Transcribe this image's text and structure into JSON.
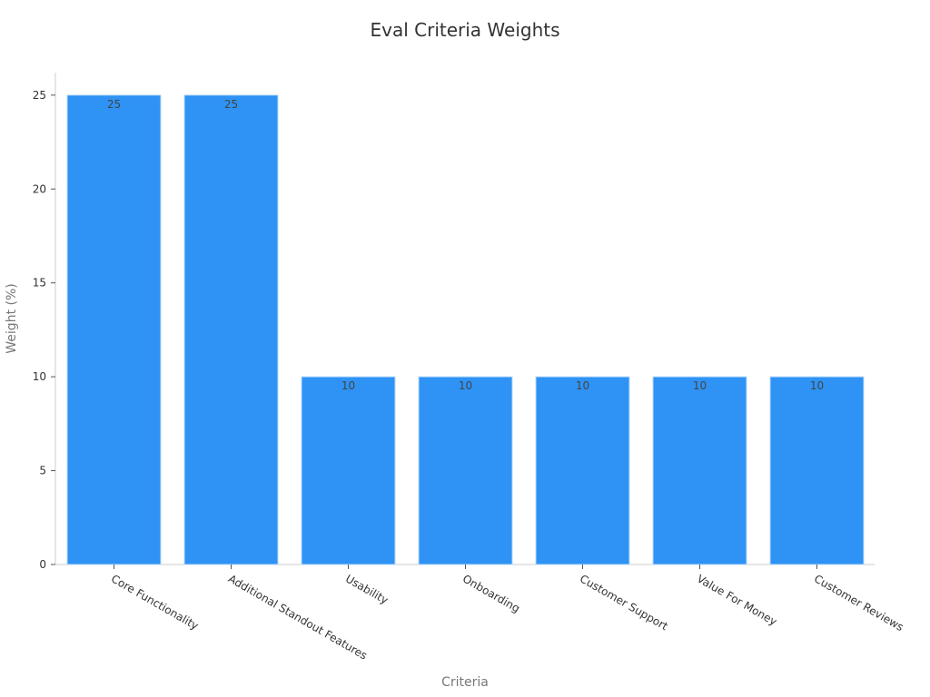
{
  "chart_data": {
    "type": "bar",
    "title": "Eval Criteria Weights",
    "xlabel": "Criteria",
    "ylabel": "Weight (%)",
    "categories": [
      "Core Functionality",
      "Additional Standout Features",
      "Usability",
      "Onboarding",
      "Customer Support",
      "Value For Money",
      "Customer Reviews"
    ],
    "values": [
      25,
      25,
      10,
      10,
      10,
      10,
      10
    ],
    "data_labels": [
      "25",
      "25",
      "10",
      "10",
      "10",
      "10",
      "10"
    ],
    "yticks": [
      0,
      5,
      10,
      15,
      20,
      25
    ],
    "ytick_labels": [
      "0",
      "5",
      "10",
      "15",
      "20",
      "25"
    ],
    "ylim": [
      0,
      26.2
    ],
    "grid": false,
    "legend": "none",
    "colors": {
      "bar": "#2e93f5",
      "bar_edge": "#b9daf9",
      "axis": "#cccccc",
      "text": "#333333",
      "axis_title": "#777777"
    }
  }
}
